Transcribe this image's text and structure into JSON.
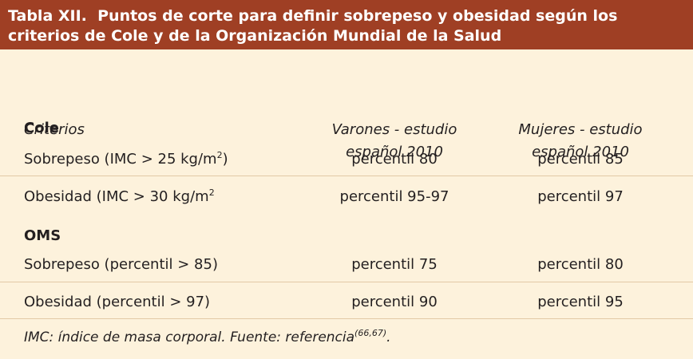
{
  "title": {
    "label": "Tabla XII.",
    "text": "Puntos de corte para definir sobrepeso y obesidad según los criterios de Cole y de la Organización Mundial de la Salud"
  },
  "columns": [
    "Criterios",
    "Varones - estudio español 2010",
    "Mujeres - estudio español 2010"
  ],
  "sections": [
    {
      "name": "Cole",
      "rows": [
        {
          "criterion": "Sobrepeso (IMC > 25 kg/m",
          "sup": "2",
          "suffix": ")",
          "men": "percentil 80",
          "women": "percentil 85"
        },
        {
          "criterion": "Obesidad (IMC > 30 kg/m",
          "sup": "2",
          "suffix": "",
          "men": "percentil 95-97",
          "women": "percentil 97"
        }
      ]
    },
    {
      "name": "OMS",
      "rows": [
        {
          "criterion": "Sobrepeso (percentil > 85)",
          "men": "percentil 75",
          "women": "percentil 80"
        },
        {
          "criterion": "Obesidad (percentil > 97)",
          "men": "percentil 90",
          "women": "percentil 95"
        }
      ]
    }
  ],
  "footnote": {
    "text": "IMC: índice de masa corporal.  Fuente: referencia",
    "refs": "(66,67)",
    "end": "."
  }
}
